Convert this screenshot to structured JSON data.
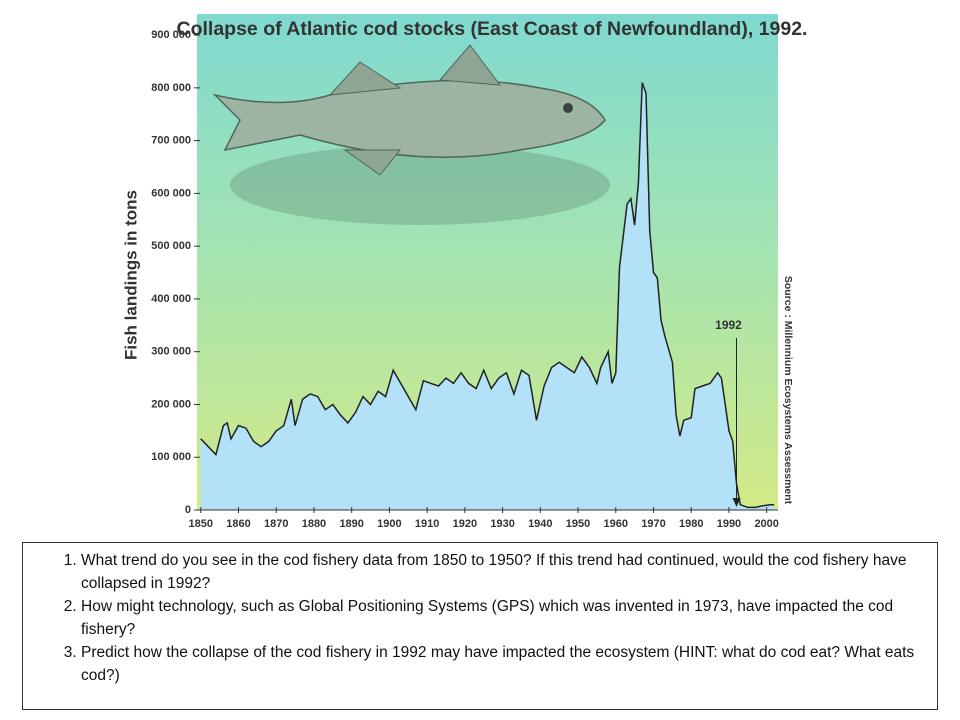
{
  "chart_data": {
    "type": "area",
    "title": "Collapse of Atlantic cod stocks (East Coast of Newfoundland), 1992.",
    "ylabel": "Fish landings in tons",
    "source": "Source : Millennium Ecosystems Assessment",
    "color": "#b3e2f8",
    "x": [
      1850,
      1852,
      1854,
      1856,
      1857,
      1858,
      1860,
      1862,
      1864,
      1866,
      1868,
      1870,
      1872,
      1874,
      1875,
      1877,
      1879,
      1881,
      1883,
      1885,
      1887,
      1889,
      1891,
      1893,
      1895,
      1897,
      1899,
      1901,
      1903,
      1905,
      1907,
      1909,
      1911,
      1913,
      1915,
      1917,
      1919,
      1921,
      1923,
      1925,
      1927,
      1929,
      1931,
      1933,
      1935,
      1937,
      1939,
      1941,
      1943,
      1945,
      1947,
      1949,
      1951,
      1953,
      1955,
      1956,
      1958,
      1959,
      1960,
      1961,
      1963,
      1964,
      1965,
      1966,
      1967,
      1968,
      1969,
      1970,
      1971,
      1972,
      1973,
      1975,
      1976,
      1977,
      1978,
      1980,
      1981,
      1983,
      1985,
      1986,
      1987,
      1988,
      1989,
      1990,
      1991,
      1992,
      1993,
      1995,
      1997,
      1999,
      2001,
      2002
    ],
    "values": [
      135000,
      120000,
      105000,
      160000,
      165000,
      135000,
      160000,
      155000,
      130000,
      120000,
      130000,
      150000,
      160000,
      210000,
      160000,
      210000,
      220000,
      215000,
      190000,
      200000,
      180000,
      165000,
      185000,
      215000,
      200000,
      225000,
      215000,
      265000,
      240000,
      215000,
      190000,
      245000,
      240000,
      235000,
      250000,
      240000,
      260000,
      240000,
      230000,
      265000,
      230000,
      250000,
      260000,
      220000,
      265000,
      255000,
      170000,
      235000,
      270000,
      280000,
      270000,
      260000,
      290000,
      270000,
      240000,
      270000,
      300000,
      240000,
      260000,
      460000,
      580000,
      590000,
      540000,
      620000,
      810000,
      790000,
      530000,
      450000,
      440000,
      360000,
      330000,
      280000,
      180000,
      140000,
      170000,
      175000,
      230000,
      235000,
      240000,
      250000,
      260000,
      250000,
      200000,
      150000,
      130000,
      50000,
      10000,
      5000,
      5000,
      8000,
      10000,
      10000
    ],
    "xlim": [
      1849,
      2003
    ],
    "ylim": [
      0,
      940000
    ],
    "xticks": [
      1850,
      1860,
      1870,
      1880,
      1890,
      1900,
      1910,
      1920,
      1930,
      1940,
      1950,
      1960,
      1970,
      1980,
      1990,
      2000
    ],
    "yticks": [
      0,
      {
        "value": 100000,
        "label": "100 000"
      },
      {
        "value": 200000,
        "label": "200 000"
      },
      {
        "value": 300000,
        "label": "300 000"
      },
      {
        "value": 400000,
        "label": "400 000"
      },
      {
        "value": 500000,
        "label": "500 000"
      },
      {
        "value": 600000,
        "label": "600 000"
      },
      {
        "value": 700000,
        "label": "700 000"
      },
      {
        "value": 800000,
        "label": "800 000"
      },
      {
        "value": 900000,
        "label": "900 000"
      }
    ],
    "annotations": [
      {
        "text": "1992",
        "x": 1992
      }
    ]
  },
  "questions": [
    "What trend do you see in the cod fishery data from 1850 to 1950? If this trend had continued, would the cod fishery have collapsed in 1992?",
    "How might technology, such as Global Positioning Systems (GPS) which was invented in 1973, have impacted the cod fishery?",
    "Predict how the collapse of the cod fishery in 1992 may have impacted the ecosystem (HINT: what do cod eat? What eats cod?)"
  ]
}
